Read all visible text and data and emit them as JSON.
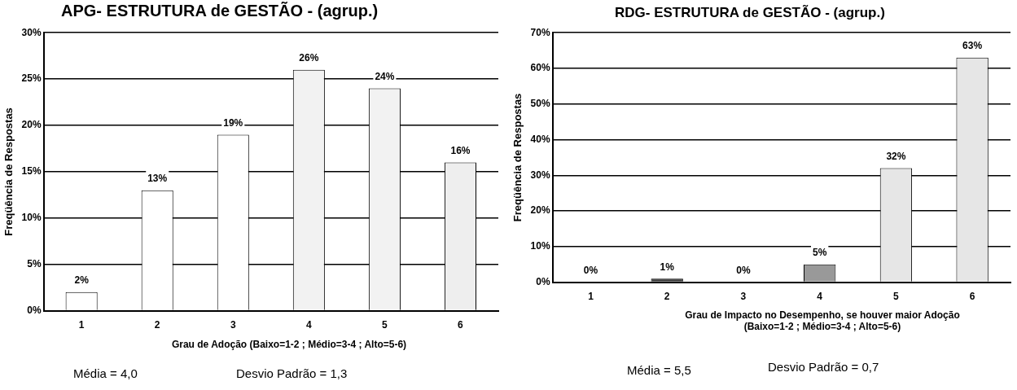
{
  "chart_data": [
    {
      "type": "bar",
      "title": "APG- ESTRUTURA de GESTÃO - (agrup.)",
      "xlabel": "Grau de Adoção (Baixo=1-2 ; Médio=3-4 ; Alto=5-6)",
      "ylabel": "Freqüência de Respostas",
      "categories": [
        "1",
        "2",
        "3",
        "4",
        "5",
        "6"
      ],
      "values": [
        2,
        13,
        19,
        26,
        24,
        16
      ],
      "value_labels": [
        "2%",
        "13%",
        "19%",
        "26%",
        "24%",
        "16%"
      ],
      "colors": [
        "#ffffff",
        "#ffffff",
        "#ffffff",
        "#f2f2f2",
        "#f2f2f2",
        "#eeeeee"
      ],
      "ylim": [
        0,
        30
      ],
      "yticks": [
        {
          "value": 0,
          "label": "0%"
        },
        {
          "value": 5,
          "label": "5%"
        },
        {
          "value": 10,
          "label": "10%"
        },
        {
          "value": 15,
          "label": "15%"
        },
        {
          "value": 20,
          "label": "20%"
        },
        {
          "value": 25,
          "label": "25%"
        },
        {
          "value": 30,
          "label": "30%"
        }
      ],
      "grid": "y",
      "annotations": [
        "Média = 4,0",
        "Desvio Padrão = 1,3"
      ]
    },
    {
      "type": "bar",
      "title": "RDG- ESTRUTURA de GESTÃO - (agrup.)",
      "xlabel": "Grau de Impacto no Desempenho, se houver maior Adoção (Baixo=1-2 ; Médio=3-4 ; Alto=5-6)",
      "ylabel": "Freqüência de Respostas",
      "categories": [
        "1",
        "2",
        "3",
        "4",
        "5",
        "6"
      ],
      "values": [
        0,
        1,
        0,
        5,
        32,
        63
      ],
      "value_labels": [
        "0%",
        "1%",
        "0%",
        "5%",
        "32%",
        "63%"
      ],
      "colors": [
        "#ffffff",
        "#333333",
        "#ffffff",
        "#999999",
        "#e6e6e6",
        "#e6e6e6"
      ],
      "ylim": [
        0,
        70
      ],
      "yticks": [
        {
          "value": 0,
          "label": "0%"
        },
        {
          "value": 10,
          "label": "10%"
        },
        {
          "value": 20,
          "label": "20%"
        },
        {
          "value": 30,
          "label": "30%"
        },
        {
          "value": 40,
          "label": "40%"
        },
        {
          "value": 50,
          "label": "50%"
        },
        {
          "value": 60,
          "label": "60%"
        },
        {
          "value": 70,
          "label": "70%"
        }
      ],
      "grid": "y",
      "annotations": [
        "Média = 5,5",
        "Desvio Padrão = 0,7"
      ]
    }
  ]
}
